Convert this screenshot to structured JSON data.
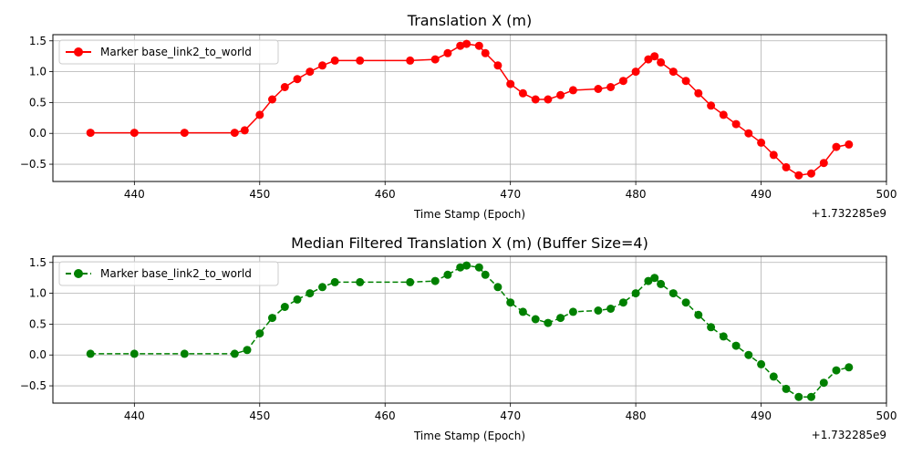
{
  "chart_data": [
    {
      "type": "line",
      "title": "Translation X (m)",
      "xlabel": "Time Stamp (Epoch)",
      "x_offset_label": "+1.732285e9",
      "xlim": [
        433.5,
        500
      ],
      "ylim": [
        -0.78,
        1.6
      ],
      "xticks": [
        440,
        450,
        460,
        470,
        480,
        490,
        500
      ],
      "yticks": [
        -0.5,
        0.0,
        0.5,
        1.0,
        1.5
      ],
      "xtick_labels": [
        "440",
        "450",
        "460",
        "470",
        "480",
        "490",
        "500"
      ],
      "ytick_labels": [
        "−0.5",
        "0.0",
        "0.5",
        "1.0",
        "1.5"
      ],
      "grid": true,
      "legend_position": "upper-left",
      "series": [
        {
          "name": "Marker base_link2_to_world",
          "color": "#ff0000",
          "line_style": "solid",
          "marker": "circle",
          "x": [
            436.5,
            440.0,
            444.0,
            448.0,
            448.8,
            450.0,
            451.0,
            452.0,
            453.0,
            454.0,
            455.0,
            456.0,
            458.0,
            462.0,
            464.0,
            465.0,
            466.0,
            466.5,
            467.5,
            468.0,
            469.0,
            470.0,
            471.0,
            472.0,
            473.0,
            474.0,
            475.0,
            477.0,
            478.0,
            479.0,
            480.0,
            481.0,
            481.5,
            482.0,
            483.0,
            484.0,
            485.0,
            486.0,
            487.0,
            488.0,
            489.0,
            490.0,
            491.0,
            492.0,
            493.0,
            494.0,
            495.0,
            496.0,
            497.0
          ],
          "y": [
            0.01,
            0.01,
            0.01,
            0.01,
            0.05,
            0.3,
            0.55,
            0.75,
            0.88,
            1.0,
            1.1,
            1.18,
            1.18,
            1.18,
            1.2,
            1.3,
            1.42,
            1.45,
            1.42,
            1.3,
            1.1,
            0.8,
            0.65,
            0.55,
            0.55,
            0.62,
            0.7,
            0.72,
            0.75,
            0.85,
            1.0,
            1.2,
            1.25,
            1.15,
            1.0,
            0.85,
            0.65,
            0.45,
            0.3,
            0.15,
            0.0,
            -0.15,
            -0.35,
            -0.55,
            -0.68,
            -0.65,
            -0.48,
            -0.22,
            -0.18
          ]
        }
      ]
    },
    {
      "type": "line",
      "title": "Median Filtered Translation X (m) (Buffer Size=4)",
      "xlabel": "Time Stamp (Epoch)",
      "x_offset_label": "+1.732285e9",
      "xlim": [
        433.5,
        500
      ],
      "ylim": [
        -0.78,
        1.6
      ],
      "xticks": [
        440,
        450,
        460,
        470,
        480,
        490,
        500
      ],
      "yticks": [
        -0.5,
        0.0,
        0.5,
        1.0,
        1.5
      ],
      "xtick_labels": [
        "440",
        "450",
        "460",
        "470",
        "480",
        "490",
        "500"
      ],
      "ytick_labels": [
        "−0.5",
        "0.0",
        "0.5",
        "1.0",
        "1.5"
      ],
      "grid": true,
      "legend_position": "upper-left",
      "series": [
        {
          "name": "Marker base_link2_to_world",
          "color": "#008000",
          "line_style": "dashed",
          "marker": "circle",
          "x": [
            436.5,
            440.0,
            444.0,
            448.0,
            449.0,
            450.0,
            451.0,
            452.0,
            453.0,
            454.0,
            455.0,
            456.0,
            458.0,
            462.0,
            464.0,
            465.0,
            466.0,
            466.5,
            467.5,
            468.0,
            469.0,
            470.0,
            471.0,
            472.0,
            473.0,
            474.0,
            475.0,
            477.0,
            478.0,
            479.0,
            480.0,
            481.0,
            481.5,
            482.0,
            483.0,
            484.0,
            485.0,
            486.0,
            487.0,
            488.0,
            489.0,
            490.0,
            491.0,
            492.0,
            493.0,
            494.0,
            495.0,
            496.0,
            497.0
          ],
          "y": [
            0.02,
            0.02,
            0.02,
            0.02,
            0.08,
            0.35,
            0.6,
            0.78,
            0.9,
            1.0,
            1.1,
            1.18,
            1.18,
            1.18,
            1.2,
            1.3,
            1.42,
            1.45,
            1.42,
            1.3,
            1.1,
            0.85,
            0.7,
            0.58,
            0.52,
            0.6,
            0.7,
            0.72,
            0.75,
            0.85,
            1.0,
            1.2,
            1.25,
            1.15,
            1.0,
            0.85,
            0.65,
            0.45,
            0.3,
            0.15,
            0.0,
            -0.15,
            -0.35,
            -0.55,
            -0.68,
            -0.68,
            -0.45,
            -0.25,
            -0.2
          ]
        }
      ]
    }
  ]
}
